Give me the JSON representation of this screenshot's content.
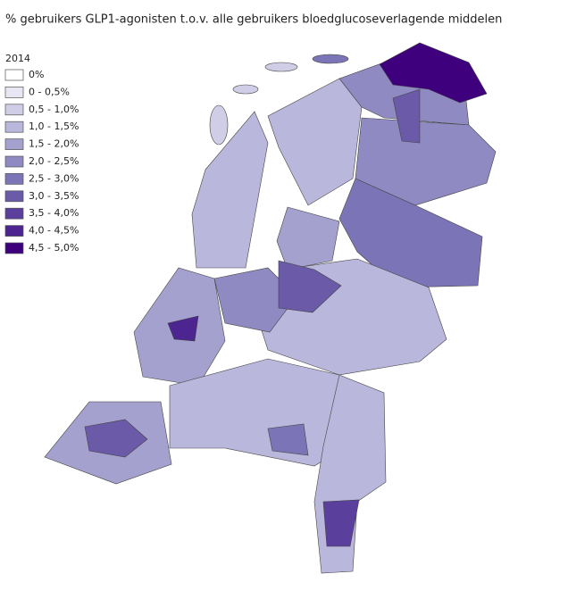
{
  "title": "% gebruikers GLP1-agonisten t.o.v. alle gebruikers bloedglucoseverlagende middelen",
  "legend": {
    "title": "2014",
    "items": [
      {
        "label": "0%",
        "color": "#ffffff"
      },
      {
        "label": "0 - 0,5%",
        "color": "#e8e6f2"
      },
      {
        "label": "0,5 - 1,0%",
        "color": "#d0cde6"
      },
      {
        "label": "1,0 - 1,5%",
        "color": "#bab7dc"
      },
      {
        "label": "1,5 - 2,0%",
        "color": "#a4a1cf"
      },
      {
        "label": "2,0 - 2,5%",
        "color": "#8f8ac2"
      },
      {
        "label": "2,5 - 3,0%",
        "color": "#7b74b7"
      },
      {
        "label": "3,0 - 3,5%",
        "color": "#6a5aa8"
      },
      {
        "label": "3,5 - 4,0%",
        "color": "#5b3f9c"
      },
      {
        "label": "4,0 - 4,5%",
        "color": "#4c2590"
      },
      {
        "label": "4,5 - 5,0%",
        "color": "#3f007d"
      }
    ]
  }
}
